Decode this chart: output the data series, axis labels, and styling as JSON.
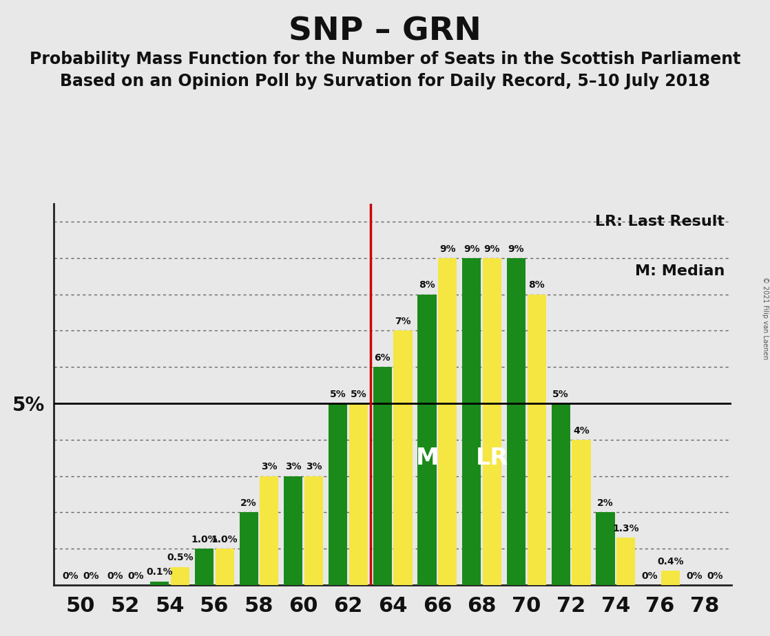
{
  "title": "SNP – GRN",
  "subtitle1": "Probability Mass Function for the Number of Seats in the Scottish Parliament",
  "subtitle2": "Based on an Opinion Poll by Survation for Daily Record, 5–10 July 2018",
  "copyright": "© 2021 Filip van Laenen",
  "seats": [
    50,
    52,
    54,
    56,
    58,
    60,
    62,
    64,
    66,
    68,
    70,
    72,
    74,
    76,
    78
  ],
  "green_values": [
    0.0,
    0.0,
    0.1,
    1.0,
    2.0,
    3.0,
    5.0,
    6.0,
    8.0,
    9.0,
    9.0,
    5.0,
    2.0,
    0.0,
    0.0
  ],
  "yellow_values": [
    0.0,
    0.0,
    0.5,
    1.0,
    3.0,
    3.0,
    5.0,
    7.0,
    9.0,
    9.0,
    8.0,
    4.0,
    1.3,
    0.4,
    0.0
  ],
  "green_labels": [
    "0%",
    "0%",
    "0.1%",
    "1.0%",
    "2%",
    "3%",
    "5%",
    "6%",
    "8%",
    "9%",
    "9%",
    "5%",
    "2%",
    "0%",
    "0%"
  ],
  "yellow_labels": [
    "0%",
    "0%",
    "0.5%",
    "1.0%",
    "3%",
    "3%",
    "5%",
    "7%",
    "9%",
    "9%",
    "8%",
    "4%",
    "1.3%",
    "0.4%",
    "0%"
  ],
  "median_seat": 66,
  "last_result_seat": 68,
  "five_pct_line": 5.0,
  "green_color": "#1a8a1a",
  "yellow_color": "#f5e642",
  "red_line_color": "#cc0000",
  "background_color": "#e8e8e8",
  "ylim_max": 10.5,
  "legend_lr": "LR: Last Result",
  "legend_m": "M: Median",
  "title_fontsize": 34,
  "subtitle_fontsize": 17,
  "label_fontsize": 10,
  "tick_fontsize": 22
}
